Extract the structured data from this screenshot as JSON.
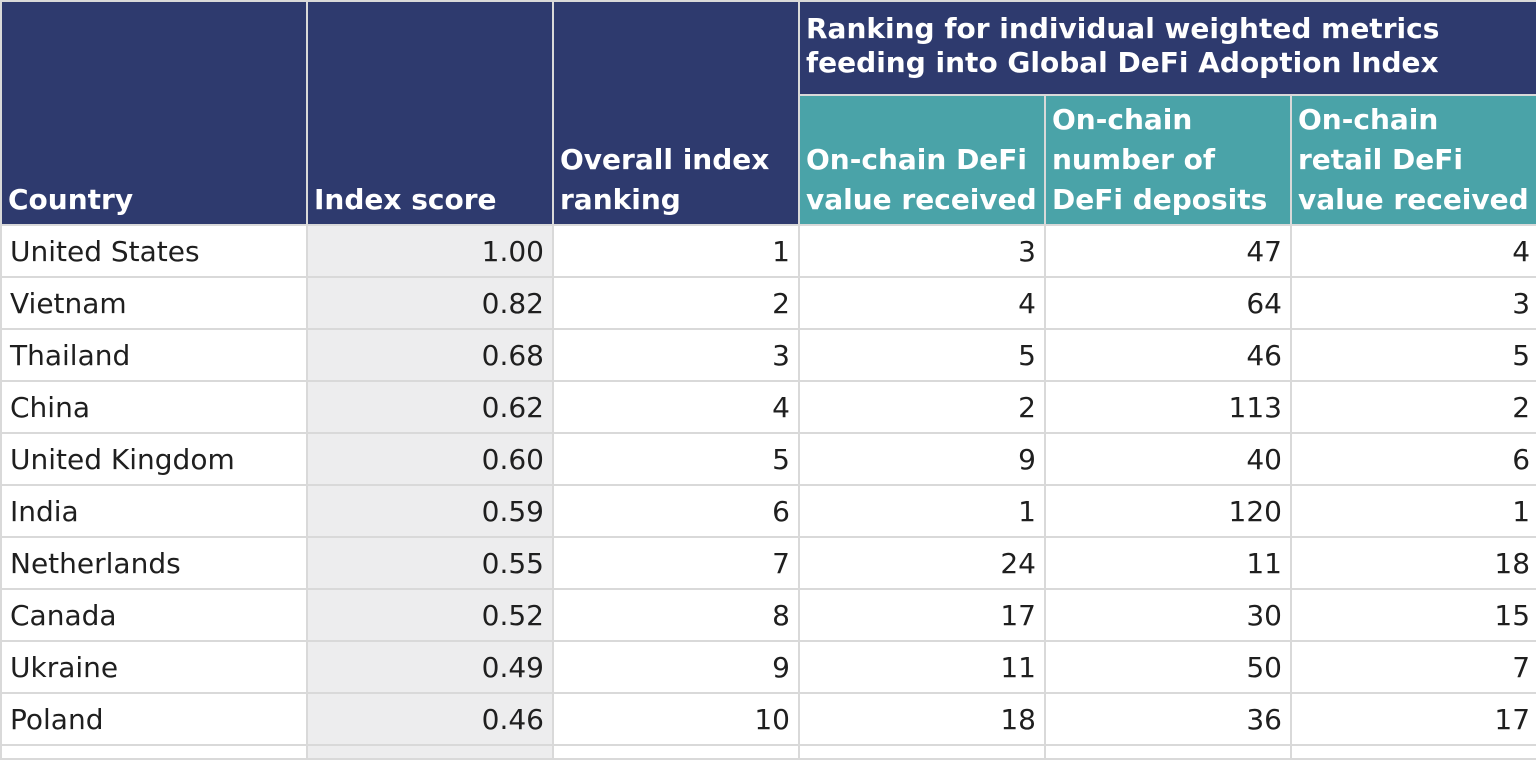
{
  "header": {
    "country": "Country",
    "index_score": "Index score",
    "overall_ranking": "Overall index ranking",
    "group_title": "Ranking for individual weighted metrics feeding into Global DeFi Adoption Index",
    "metrics": [
      "On-chain DeFi value received",
      "On-chain number of DeFi deposits",
      "On-chain retail DeFi value received"
    ]
  },
  "colors": {
    "header_navy": "#2e3a6e",
    "header_teal": "#4aa3a8",
    "shaded_cell": "#ededee",
    "grid": "#d9d9d9"
  },
  "rows": [
    {
      "country": "United States",
      "score": "1.00",
      "rank": "1",
      "m1": "3",
      "m2": "47",
      "m3": "4"
    },
    {
      "country": "Vietnam",
      "score": "0.82",
      "rank": "2",
      "m1": "4",
      "m2": "64",
      "m3": "3"
    },
    {
      "country": "Thailand",
      "score": "0.68",
      "rank": "3",
      "m1": "5",
      "m2": "46",
      "m3": "5"
    },
    {
      "country": "China",
      "score": "0.62",
      "rank": "4",
      "m1": "2",
      "m2": "113",
      "m3": "2"
    },
    {
      "country": "United Kingdom",
      "score": "0.60",
      "rank": "5",
      "m1": "9",
      "m2": "40",
      "m3": "6"
    },
    {
      "country": "India",
      "score": "0.59",
      "rank": "6",
      "m1": "1",
      "m2": "120",
      "m3": "1"
    },
    {
      "country": "Netherlands",
      "score": "0.55",
      "rank": "7",
      "m1": "24",
      "m2": "11",
      "m3": "18"
    },
    {
      "country": "Canada",
      "score": "0.52",
      "rank": "8",
      "m1": "17",
      "m2": "30",
      "m3": "15"
    },
    {
      "country": "Ukraine",
      "score": "0.49",
      "rank": "9",
      "m1": "11",
      "m2": "50",
      "m3": "7"
    },
    {
      "country": "Poland",
      "score": "0.46",
      "rank": "10",
      "m1": "18",
      "m2": "36",
      "m3": "17"
    }
  ]
}
